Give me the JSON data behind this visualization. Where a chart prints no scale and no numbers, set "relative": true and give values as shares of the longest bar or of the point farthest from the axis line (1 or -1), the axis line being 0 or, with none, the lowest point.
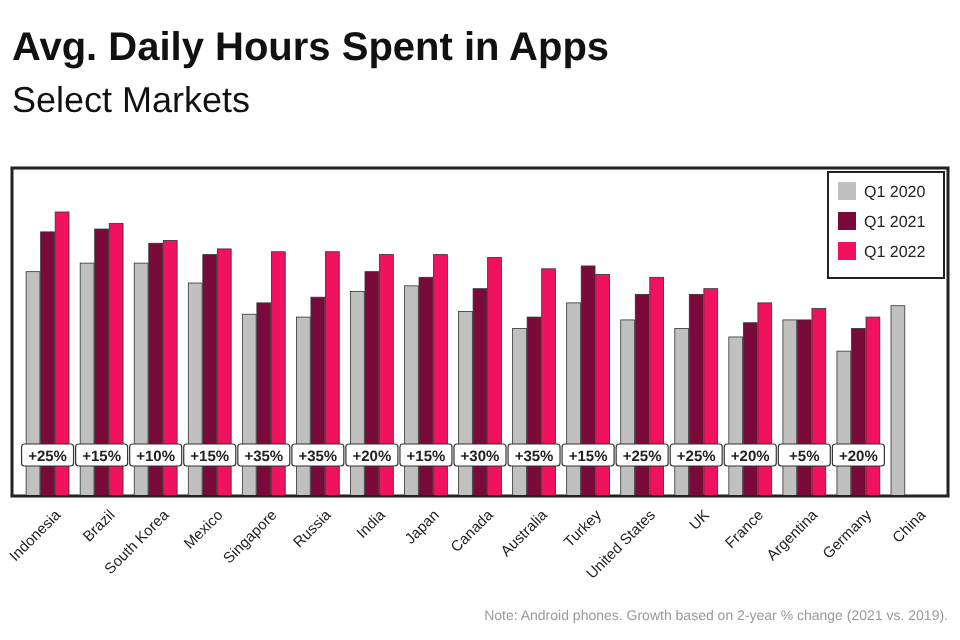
{
  "chart_data": {
    "type": "bar",
    "title": "Avg. Daily Hours Spent in Apps",
    "subtitle": "Select Markets",
    "relative": true,
    "legend": "top right",
    "categories": [
      "Indonesia",
      "Brazil",
      "South Korea",
      "Mexico",
      "Singapore",
      "Russia",
      "India",
      "Japan",
      "Canada",
      "Australia",
      "Turkey",
      "United States",
      "UK",
      "France",
      "Argentina",
      "Germany",
      "China"
    ],
    "series": [
      {
        "name": "Q1 2020",
        "color": "#c0c0c0",
        "values": [
          0.79,
          0.82,
          0.82,
          0.75,
          0.64,
          0.63,
          0.72,
          0.74,
          0.65,
          0.59,
          0.68,
          0.62,
          0.59,
          0.56,
          0.62,
          0.51,
          0.67
        ]
      },
      {
        "name": "Q1 2021",
        "color": "#7a0a3a",
        "values": [
          0.93,
          0.94,
          0.89,
          0.85,
          0.68,
          0.7,
          0.79,
          0.77,
          0.73,
          0.63,
          0.81,
          0.71,
          0.71,
          0.61,
          0.62,
          0.59,
          null
        ]
      },
      {
        "name": "Q1 2022",
        "color": "#f0115f",
        "values": [
          1,
          0.96,
          0.9,
          0.87,
          0.86,
          0.86,
          0.85,
          0.85,
          0.84,
          0.8,
          0.78,
          0.77,
          0.73,
          0.68,
          0.66,
          0.63,
          null
        ]
      }
    ],
    "annotations": [
      {
        "text": "+25%",
        "x": "Indonesia"
      },
      {
        "text": "+15%",
        "x": "Brazil"
      },
      {
        "text": "+10%",
        "x": "South Korea"
      },
      {
        "text": "+15%",
        "x": "Mexico"
      },
      {
        "text": "+35%",
        "x": "Singapore"
      },
      {
        "text": "+35%",
        "x": "Russia"
      },
      {
        "text": "+20%",
        "x": "India"
      },
      {
        "text": "+15%",
        "x": "Japan"
      },
      {
        "text": "+30%",
        "x": "Canada"
      },
      {
        "text": "+35%",
        "x": "Australia"
      },
      {
        "text": "+15%",
        "x": "Turkey"
      },
      {
        "text": "+25%",
        "x": "United States"
      },
      {
        "text": "+25%",
        "x": "UK"
      },
      {
        "text": "+20%",
        "x": "France"
      },
      {
        "text": "+5%",
        "x": "Argentina"
      },
      {
        "text": "+20%",
        "x": "Germany"
      },
      "Note: Android phones. Growth based on 2-year % change (2021 vs. 2019)."
    ]
  }
}
